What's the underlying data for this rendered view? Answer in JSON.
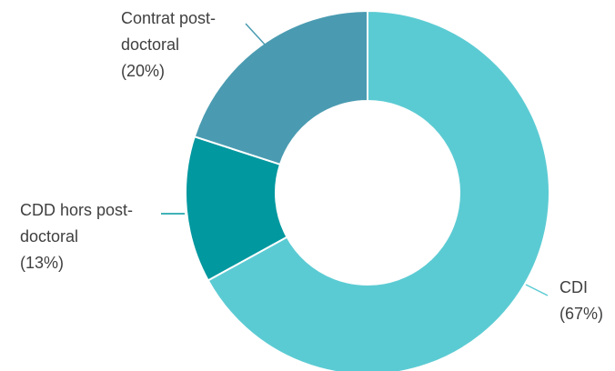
{
  "chart_data": {
    "type": "pie",
    "donut": true,
    "categories": [
      "CDI",
      "CDD hors post-doctoral",
      "Contrat post-doctoral"
    ],
    "values": [
      67,
      13,
      20
    ],
    "unit": "%",
    "colors": [
      "#5BCBD3",
      "#02989F",
      "#4A9BB1"
    ],
    "labels": [
      {
        "name": "CDI",
        "lines": [
          "CDI",
          "(67%)"
        ]
      },
      {
        "name": "CDD hors post-doctoral",
        "lines": [
          "CDD hors post-",
          "doctoral",
          "(13%)"
        ]
      },
      {
        "name": "Contrat post-doctoral",
        "lines": [
          "Contrat post-",
          "doctoral",
          "(20%)"
        ]
      }
    ],
    "title": "",
    "legend": "none"
  }
}
